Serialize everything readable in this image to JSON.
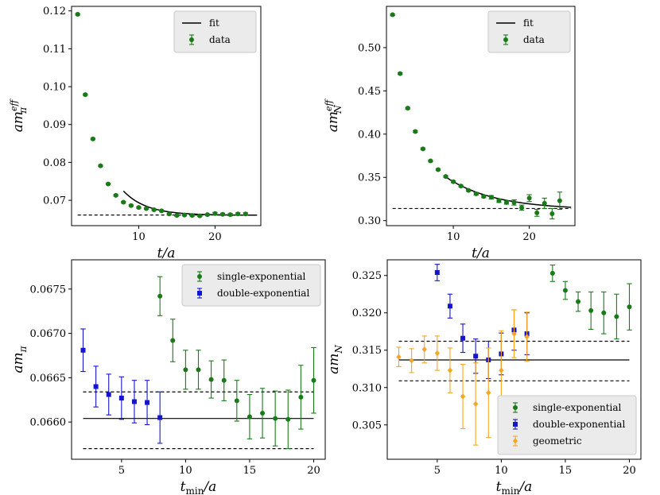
{
  "chart_data": [
    {
      "type": "scatter",
      "xlabel": "t/a",
      "ylabel_main": "am",
      "ylabel_sup": "eff",
      "ylabel_sub": "π",
      "xlim": [
        1.2,
        26
      ],
      "ylim": [
        0.0633,
        0.1212
      ],
      "xticks": [
        10,
        20
      ],
      "yticks": [
        0.07,
        0.08,
        0.09,
        0.1,
        0.11,
        0.12
      ],
      "ytick_labels": [
        "0.07",
        "0.08",
        "0.09",
        "0.10",
        "0.11",
        "0.12"
      ],
      "legend": [
        {
          "label": "fit",
          "kind": "line",
          "color": "#000000"
        },
        {
          "label": "data",
          "kind": "errorpoint",
          "color": "#1a7a1a"
        }
      ],
      "legend_position": "top-right",
      "series": [
        {
          "kind": "data",
          "color": "#1a7a1a",
          "marker": "circle",
          "points": [
            {
              "x": 2,
              "y": 0.1191,
              "err": 0.0002
            },
            {
              "x": 3,
              "y": 0.0979,
              "err": 0.0002
            },
            {
              "x": 4,
              "y": 0.0862,
              "err": 0.0002
            },
            {
              "x": 5,
              "y": 0.0791,
              "err": 0.0002
            },
            {
              "x": 6,
              "y": 0.0743,
              "err": 0.0002
            },
            {
              "x": 7,
              "y": 0.0713,
              "err": 0.0002
            },
            {
              "x": 8,
              "y": 0.0695,
              "err": 0.0002
            },
            {
              "x": 9,
              "y": 0.0686,
              "err": 0.0002
            },
            {
              "x": 10,
              "y": 0.0681,
              "err": 0.0002
            },
            {
              "x": 11,
              "y": 0.0678,
              "err": 0.0002
            },
            {
              "x": 12,
              "y": 0.0675,
              "err": 0.0002
            },
            {
              "x": 13,
              "y": 0.0672,
              "err": 0.0002
            },
            {
              "x": 14,
              "y": 0.0664,
              "err": 0.0002
            },
            {
              "x": 15,
              "y": 0.066,
              "err": 0.0002
            },
            {
              "x": 16,
              "y": 0.0661,
              "err": 0.0002
            },
            {
              "x": 17,
              "y": 0.066,
              "err": 0.0002
            },
            {
              "x": 18,
              "y": 0.0659,
              "err": 0.0002
            },
            {
              "x": 19,
              "y": 0.0662,
              "err": 0.0002
            },
            {
              "x": 20,
              "y": 0.0665,
              "err": 0.0003
            },
            {
              "x": 21,
              "y": 0.0663,
              "err": 0.0003
            },
            {
              "x": 22,
              "y": 0.0662,
              "err": 0.0003
            },
            {
              "x": 23,
              "y": 0.0664,
              "err": 0.0003
            },
            {
              "x": 24,
              "y": 0.0664,
              "err": 0.0003
            }
          ]
        }
      ],
      "fit_curve": {
        "color": "#000000",
        "x_start": 8,
        "x_end": 25.5,
        "y_inf": 0.06605,
        "amp": 0.0064,
        "decay": 0.33
      },
      "dashed_line": {
        "y": 0.0661,
        "x_start": 2,
        "x_end": 25.5
      }
    },
    {
      "type": "scatter",
      "xlabel": "t/a",
      "ylabel_main": "am",
      "ylabel_sup": "eff",
      "ylabel_sub": "N",
      "xlim": [
        1.2,
        26
      ],
      "ylim": [
        0.2942,
        0.5477
      ],
      "xticks": [
        10,
        20
      ],
      "yticks": [
        0.3,
        0.35,
        0.4,
        0.45,
        0.5
      ],
      "ytick_labels": [
        "0.30",
        "0.35",
        "0.40",
        "0.45",
        "0.50"
      ],
      "legend": [
        {
          "label": "fit",
          "kind": "line",
          "color": "#000000"
        },
        {
          "label": "data",
          "kind": "errorpoint",
          "color": "#1a7a1a"
        }
      ],
      "legend_position": "top-right",
      "series": [
        {
          "kind": "data",
          "color": "#1a7a1a",
          "marker": "circle",
          "points": [
            {
              "x": 2,
              "y": 0.538,
              "err": 0.001
            },
            {
              "x": 3,
              "y": 0.47,
              "err": 0.001
            },
            {
              "x": 4,
              "y": 0.43,
              "err": 0.001
            },
            {
              "x": 5,
              "y": 0.403,
              "err": 0.001
            },
            {
              "x": 6,
              "y": 0.383,
              "err": 0.001
            },
            {
              "x": 7,
              "y": 0.369,
              "err": 0.001
            },
            {
              "x": 8,
              "y": 0.359,
              "err": 0.001
            },
            {
              "x": 9,
              "y": 0.351,
              "err": 0.001
            },
            {
              "x": 10,
              "y": 0.345,
              "err": 0.001
            },
            {
              "x": 11,
              "y": 0.34,
              "err": 0.001
            },
            {
              "x": 12,
              "y": 0.335,
              "err": 0.001
            },
            {
              "x": 13,
              "y": 0.331,
              "err": 0.0015
            },
            {
              "x": 14,
              "y": 0.328,
              "err": 0.0015
            },
            {
              "x": 15,
              "y": 0.327,
              "err": 0.002
            },
            {
              "x": 16,
              "y": 0.323,
              "err": 0.002
            },
            {
              "x": 17,
              "y": 0.321,
              "err": 0.002
            },
            {
              "x": 18,
              "y": 0.321,
              "err": 0.003
            },
            {
              "x": 19,
              "y": 0.315,
              "err": 0.003
            },
            {
              "x": 20,
              "y": 0.326,
              "err": 0.004
            },
            {
              "x": 21,
              "y": 0.309,
              "err": 0.004
            },
            {
              "x": 22,
              "y": 0.32,
              "err": 0.006
            },
            {
              "x": 23,
              "y": 0.308,
              "err": 0.006
            },
            {
              "x": 24,
              "y": 0.323,
              "err": 0.01
            }
          ]
        }
      ],
      "fit_curve": {
        "color": "#000000",
        "x_start": 9,
        "x_end": 25.5,
        "y_inf": 0.3125,
        "amp": 0.038,
        "decay": 0.155
      },
      "dashed_line": {
        "y": 0.314,
        "x_start": 2,
        "x_end": 25.5
      }
    },
    {
      "type": "scatter",
      "xlabel_main": "t",
      "xlabel_sub": "min",
      "xlabel_tail": "/a",
      "ylabel_main": "am",
      "ylabel_sub": "π",
      "xlim": [
        1.1,
        20.9
      ],
      "ylim": [
        0.06558,
        0.06783
      ],
      "xticks": [
        5,
        10,
        15,
        20
      ],
      "yticks": [
        0.066,
        0.0665,
        0.067,
        0.0675
      ],
      "ytick_labels": [
        "0.0660",
        "0.0665",
        "0.0670",
        "0.0675"
      ],
      "legend": [
        {
          "label": "single-exponential",
          "kind": "errorpoint",
          "color": "#1a7a1a"
        },
        {
          "label": "double-exponential",
          "kind": "errorsquare",
          "color": "#1515cc"
        }
      ],
      "legend_position": "top-right",
      "series": [
        {
          "kind": "data",
          "name": "single-exponential",
          "color": "#1a7a1a",
          "marker": "circle",
          "points": [
            {
              "x": 8,
              "y": 0.06742,
              "err": 0.00022
            },
            {
              "x": 9,
              "y": 0.06692,
              "err": 0.00024
            },
            {
              "x": 10,
              "y": 0.06659,
              "err": 0.00022
            },
            {
              "x": 11,
              "y": 0.06659,
              "err": 0.00022
            },
            {
              "x": 12,
              "y": 0.06648,
              "err": 0.00021
            },
            {
              "x": 13,
              "y": 0.06647,
              "err": 0.00023
            },
            {
              "x": 14,
              "y": 0.06624,
              "err": 0.00023
            },
            {
              "x": 15,
              "y": 0.06606,
              "err": 0.00025
            },
            {
              "x": 16,
              "y": 0.0661,
              "err": 0.00028
            },
            {
              "x": 17,
              "y": 0.06604,
              "err": 0.00031
            },
            {
              "x": 18,
              "y": 0.06603,
              "err": 0.00033
            },
            {
              "x": 19,
              "y": 0.06628,
              "err": 0.00036
            },
            {
              "x": 20,
              "y": 0.06647,
              "err": 0.00037
            }
          ]
        },
        {
          "kind": "data",
          "name": "double-exponential",
          "color": "#1515cc",
          "marker": "square",
          "points": [
            {
              "x": 2,
              "y": 0.06681,
              "err": 0.00024
            },
            {
              "x": 3,
              "y": 0.0664,
              "err": 0.00023
            },
            {
              "x": 4,
              "y": 0.06631,
              "err": 0.00023
            },
            {
              "x": 5,
              "y": 0.06627,
              "err": 0.00024
            },
            {
              "x": 6,
              "y": 0.06623,
              "err": 0.00024
            },
            {
              "x": 7,
              "y": 0.06622,
              "err": 0.00025
            },
            {
              "x": 8,
              "y": 0.06605,
              "err": 0.00029
            }
          ]
        }
      ],
      "solid_line": {
        "y": 0.06604,
        "x_start": 2,
        "x_end": 20
      },
      "dashed_lines": [
        {
          "y": 0.06634,
          "x_start": 2,
          "x_end": 20
        },
        {
          "y": 0.0657,
          "x_start": 2,
          "x_end": 20
        }
      ]
    },
    {
      "type": "scatter",
      "xlabel_main": "t",
      "xlabel_sub": "min",
      "xlabel_tail": "/a",
      "ylabel_main": "am",
      "ylabel_sub": "N",
      "xlim": [
        1.1,
        20.9
      ],
      "ylim": [
        0.3004,
        0.3271
      ],
      "xticks": [
        5,
        10,
        15,
        20
      ],
      "yticks": [
        0.305,
        0.31,
        0.315,
        0.32,
        0.325
      ],
      "ytick_labels": [
        "0.305",
        "0.310",
        "0.315",
        "0.320",
        "0.325"
      ],
      "legend": [
        {
          "label": "single-exponential",
          "kind": "errorpoint",
          "color": "#1a7a1a"
        },
        {
          "label": "double-exponential",
          "kind": "errorsquare",
          "color": "#1515cc"
        },
        {
          "label": "geometric",
          "kind": "errordiamond",
          "color": "#f5a623"
        }
      ],
      "legend_position": "bottom-right",
      "series": [
        {
          "kind": "data",
          "name": "single-exponential",
          "color": "#1a7a1a",
          "marker": "circle",
          "points": [
            {
              "x": 14,
              "y": 0.3253,
              "err": 0.0011
            },
            {
              "x": 15,
              "y": 0.323,
              "err": 0.0012
            },
            {
              "x": 16,
              "y": 0.3215,
              "err": 0.0013
            },
            {
              "x": 17,
              "y": 0.3203,
              "err": 0.0025
            },
            {
              "x": 18,
              "y": 0.32,
              "err": 0.0028
            },
            {
              "x": 19,
              "y": 0.3195,
              "err": 0.003
            },
            {
              "x": 20,
              "y": 0.3208,
              "err": 0.0031
            }
          ]
        },
        {
          "kind": "data",
          "name": "double-exponential",
          "color": "#1515cc",
          "marker": "square",
          "points": [
            {
              "x": 5,
              "y": 0.3254,
              "err": 0.0011
            },
            {
              "x": 6,
              "y": 0.3209,
              "err": 0.0016
            },
            {
              "x": 7,
              "y": 0.3166,
              "err": 0.0019
            },
            {
              "x": 8,
              "y": 0.3142,
              "err": 0.0023
            },
            {
              "x": 9,
              "y": 0.3137,
              "err": 0.0025
            },
            {
              "x": 10,
              "y": 0.3145,
              "err": 0.0028
            },
            {
              "x": 11,
              "y": 0.3177,
              "err": 0.0027
            },
            {
              "x": 12,
              "y": 0.3172,
              "err": 0.0028
            }
          ]
        },
        {
          "kind": "data",
          "name": "geometric",
          "color": "#f5a623",
          "marker": "diamond",
          "points": [
            {
              "x": 2,
              "y": 0.3141,
              "err": 0.0013
            },
            {
              "x": 3,
              "y": 0.3136,
              "err": 0.0016
            },
            {
              "x": 4,
              "y": 0.3151,
              "err": 0.0018
            },
            {
              "x": 5,
              "y": 0.3146,
              "err": 0.0023
            },
            {
              "x": 6,
              "y": 0.3123,
              "err": 0.003
            },
            {
              "x": 7,
              "y": 0.3088,
              "err": 0.0043
            },
            {
              "x": 8,
              "y": 0.3078,
              "err": 0.0055
            },
            {
              "x": 9,
              "y": 0.3093,
              "err": 0.006
            },
            {
              "x": 10,
              "y": 0.3123,
              "err": 0.0053
            },
            {
              "x": 11,
              "y": 0.3172,
              "err": 0.0032
            },
            {
              "x": 12,
              "y": 0.3168,
              "err": 0.0033
            }
          ]
        }
      ],
      "solid_line": {
        "y": 0.3137,
        "x_start": 2,
        "x_end": 20
      },
      "dashed_lines": [
        {
          "y": 0.3162,
          "x_start": 2,
          "x_end": 20
        },
        {
          "y": 0.3109,
          "x_start": 2,
          "x_end": 20
        }
      ]
    }
  ]
}
